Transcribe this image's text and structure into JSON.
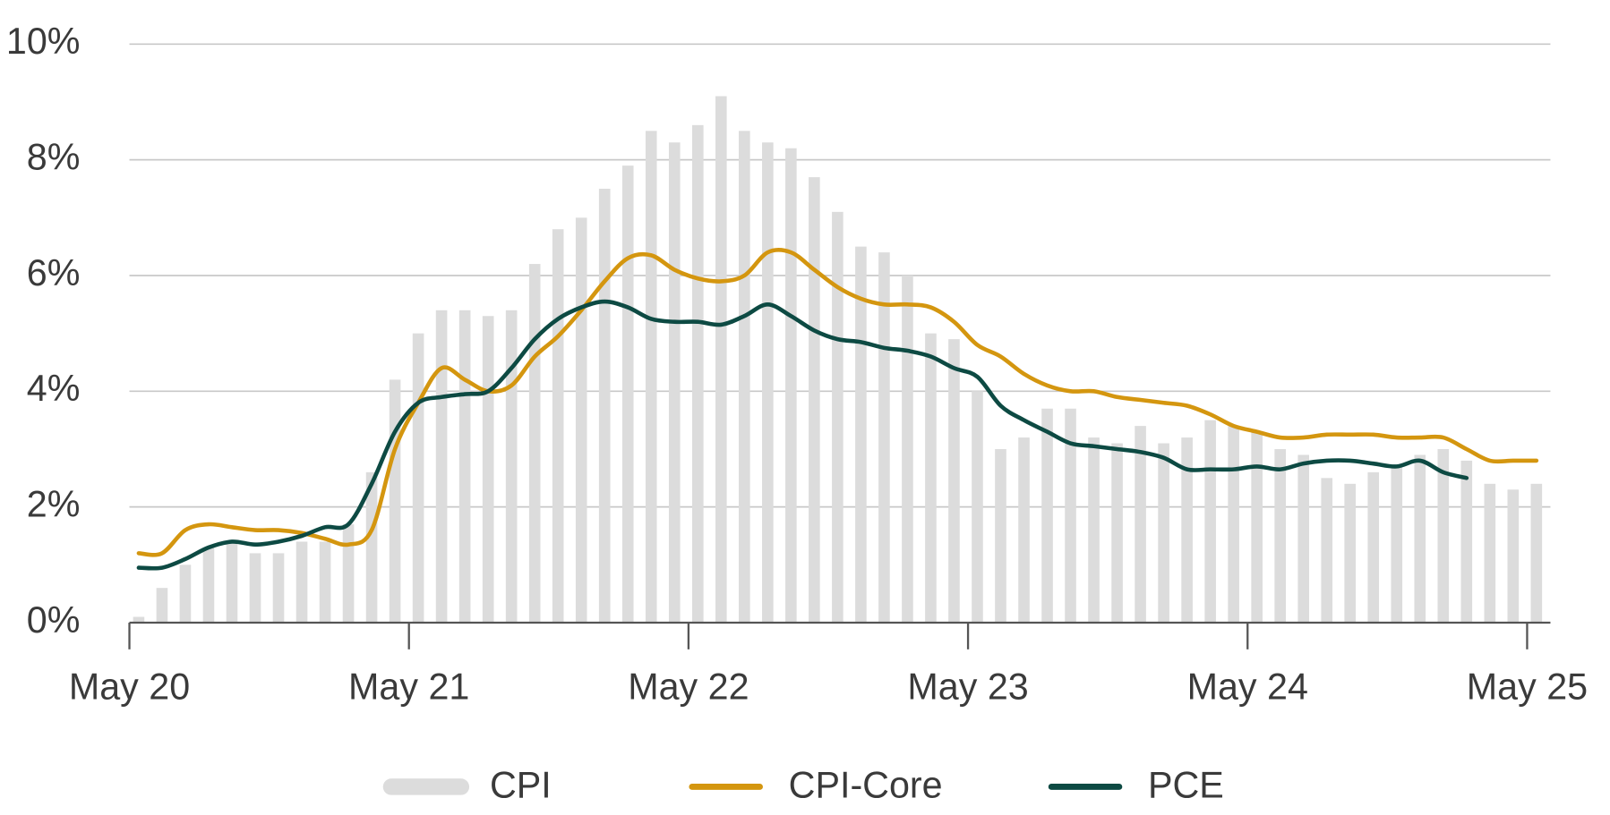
{
  "chart_data": {
    "type": "bar",
    "categories": [
      "May 20",
      null,
      null,
      null,
      null,
      null,
      null,
      null,
      null,
      null,
      null,
      null,
      "May 21",
      null,
      null,
      null,
      null,
      null,
      null,
      null,
      null,
      null,
      null,
      null,
      "May 22",
      null,
      null,
      null,
      null,
      null,
      null,
      null,
      null,
      null,
      null,
      null,
      "May 23",
      null,
      null,
      null,
      null,
      null,
      null,
      null,
      null,
      null,
      null,
      null,
      "May 24",
      null,
      null,
      null,
      null,
      null,
      null,
      null,
      null,
      null,
      null,
      null,
      "May 25"
    ],
    "ylim": [
      0,
      10
    ],
    "yticks": [
      {
        "value": 0,
        "label": "0%"
      },
      {
        "value": 2,
        "label": "2%"
      },
      {
        "value": 4,
        "label": "4%"
      },
      {
        "value": 6,
        "label": "6%"
      },
      {
        "value": 8,
        "label": "8%"
      },
      {
        "value": 10,
        "label": "10%"
      }
    ],
    "grid": true,
    "legend": "bottom",
    "series": [
      {
        "name": "CPI",
        "type": "bar",
        "color": "#dcdcdc",
        "values": [
          0.1,
          0.6,
          1.0,
          1.3,
          1.4,
          1.2,
          1.2,
          1.4,
          1.4,
          1.7,
          2.6,
          4.2,
          5.0,
          5.4,
          5.4,
          5.3,
          5.4,
          6.2,
          6.8,
          7.0,
          7.5,
          7.9,
          8.5,
          8.3,
          8.6,
          9.1,
          8.5,
          8.3,
          8.2,
          7.7,
          7.1,
          6.5,
          6.4,
          6.0,
          5.0,
          4.9,
          4.0,
          3.0,
          3.2,
          3.7,
          3.7,
          3.2,
          3.1,
          3.4,
          3.1,
          3.2,
          3.5,
          3.4,
          3.3,
          3.0,
          2.9,
          2.5,
          2.4,
          2.6,
          2.7,
          2.9,
          3.0,
          2.8,
          2.4,
          2.3,
          2.4
        ]
      },
      {
        "name": "CPI-Core",
        "type": "line",
        "color": "#d4960f",
        "values": [
          1.2,
          1.2,
          1.6,
          1.7,
          1.65,
          1.6,
          1.6,
          1.55,
          1.45,
          1.35,
          1.6,
          3.0,
          3.8,
          4.4,
          4.2,
          4.0,
          4.1,
          4.6,
          4.95,
          5.4,
          5.9,
          6.3,
          6.35,
          6.1,
          5.95,
          5.9,
          6.0,
          6.4,
          6.4,
          6.1,
          5.8,
          5.6,
          5.5,
          5.5,
          5.45,
          5.2,
          4.8,
          4.6,
          4.3,
          4.1,
          4.0,
          4.0,
          3.9,
          3.85,
          3.8,
          3.75,
          3.6,
          3.4,
          3.3,
          3.2,
          3.2,
          3.25,
          3.25,
          3.25,
          3.2,
          3.2,
          3.2,
          3.0,
          2.8,
          2.8,
          2.8
        ]
      },
      {
        "name": "PCE",
        "type": "line",
        "color": "#0d4a43",
        "values": [
          0.95,
          0.95,
          1.1,
          1.3,
          1.4,
          1.35,
          1.4,
          1.5,
          1.65,
          1.7,
          2.4,
          3.3,
          3.8,
          3.9,
          3.95,
          4.0,
          4.4,
          4.9,
          5.25,
          5.45,
          5.55,
          5.45,
          5.25,
          5.2,
          5.2,
          5.15,
          5.3,
          5.5,
          5.3,
          5.05,
          4.9,
          4.85,
          4.75,
          4.7,
          4.6,
          4.4,
          4.25,
          3.75,
          3.5,
          3.3,
          3.1,
          3.05,
          3.0,
          2.95,
          2.85,
          2.65,
          2.65,
          2.65,
          2.7,
          2.65,
          2.75,
          2.8,
          2.8,
          2.75,
          2.7,
          2.8,
          2.6,
          2.5,
          null,
          null,
          null
        ]
      }
    ]
  }
}
